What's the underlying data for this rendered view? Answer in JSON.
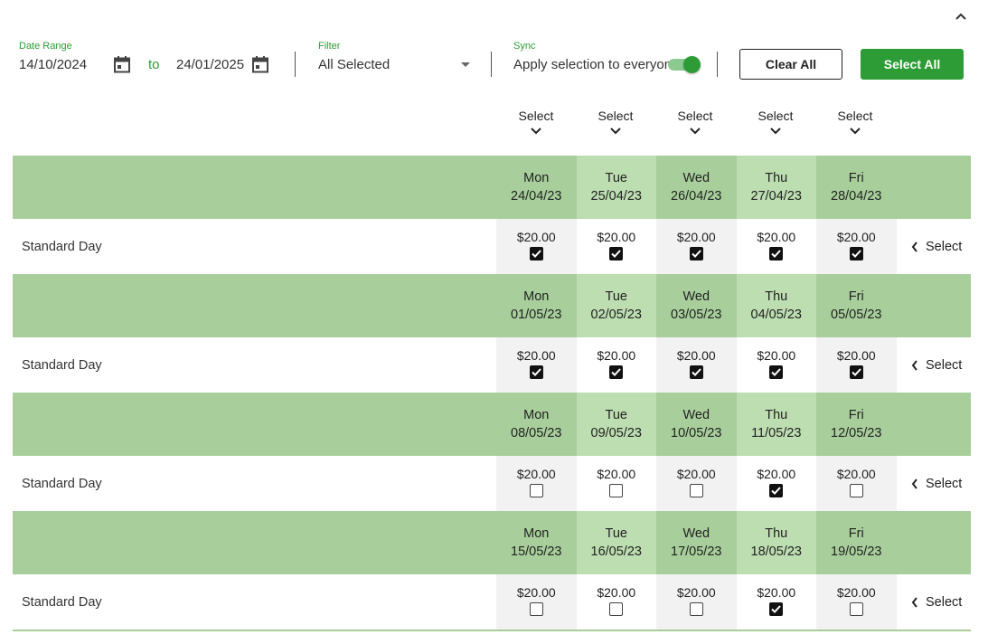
{
  "toolbar": {
    "date_range": {
      "label": "Date Range",
      "from": "14/10/2024",
      "to_word": "to",
      "to": "24/01/2025"
    },
    "filter": {
      "label": "Filter",
      "value": "All Selected"
    },
    "sync": {
      "label": "Sync",
      "text": "Apply selection to everyone",
      "enabled": true
    },
    "clear_all_label": "Clear All",
    "select_all_label": "Select All"
  },
  "column_select_label": "Select",
  "row_label": "Standard Day",
  "row_select_label": "Select",
  "colors": {
    "accent": "#2e9c36",
    "header_bg": "#a8cf9b",
    "header_alt_bg": "#bddeb1"
  },
  "weeks": [
    {
      "days": [
        {
          "day": "Mon",
          "date": "24/04/23",
          "price": "$20.00",
          "checked": true
        },
        {
          "day": "Tue",
          "date": "25/04/23",
          "price": "$20.00",
          "checked": true
        },
        {
          "day": "Wed",
          "date": "26/04/23",
          "price": "$20.00",
          "checked": true
        },
        {
          "day": "Thu",
          "date": "27/04/23",
          "price": "$20.00",
          "checked": true
        },
        {
          "day": "Fri",
          "date": "28/04/23",
          "price": "$20.00",
          "checked": true
        }
      ]
    },
    {
      "days": [
        {
          "day": "Mon",
          "date": "01/05/23",
          "price": "$20.00",
          "checked": true
        },
        {
          "day": "Tue",
          "date": "02/05/23",
          "price": "$20.00",
          "checked": true
        },
        {
          "day": "Wed",
          "date": "03/05/23",
          "price": "$20.00",
          "checked": true
        },
        {
          "day": "Thu",
          "date": "04/05/23",
          "price": "$20.00",
          "checked": true
        },
        {
          "day": "Fri",
          "date": "05/05/23",
          "price": "$20.00",
          "checked": true
        }
      ]
    },
    {
      "days": [
        {
          "day": "Mon",
          "date": "08/05/23",
          "price": "$20.00",
          "checked": false
        },
        {
          "day": "Tue",
          "date": "09/05/23",
          "price": "$20.00",
          "checked": false
        },
        {
          "day": "Wed",
          "date": "10/05/23",
          "price": "$20.00",
          "checked": false
        },
        {
          "day": "Thu",
          "date": "11/05/23",
          "price": "$20.00",
          "checked": true
        },
        {
          "day": "Fri",
          "date": "12/05/23",
          "price": "$20.00",
          "checked": false
        }
      ]
    },
    {
      "days": [
        {
          "day": "Mon",
          "date": "15/05/23",
          "price": "$20.00",
          "checked": false
        },
        {
          "day": "Tue",
          "date": "16/05/23",
          "price": "$20.00",
          "checked": false
        },
        {
          "day": "Wed",
          "date": "17/05/23",
          "price": "$20.00",
          "checked": false
        },
        {
          "day": "Thu",
          "date": "18/05/23",
          "price": "$20.00",
          "checked": true
        },
        {
          "day": "Fri",
          "date": "19/05/23",
          "price": "$20.00",
          "checked": false
        }
      ]
    }
  ]
}
